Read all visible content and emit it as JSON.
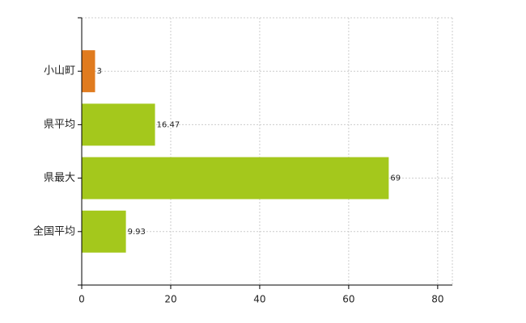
{
  "chart_data": {
    "type": "bar",
    "orientation": "horizontal",
    "categories": [
      "小山町",
      "県平均",
      "県最大",
      "全国平均"
    ],
    "values": [
      3,
      16.47,
      69,
      9.93
    ],
    "colors": [
      "#e07b1f",
      "#a4c81c",
      "#a4c81c",
      "#a4c81c"
    ],
    "xlim": [
      0,
      83.3
    ],
    "xticks": [
      0,
      20,
      40,
      60,
      80
    ],
    "grid": true
  }
}
